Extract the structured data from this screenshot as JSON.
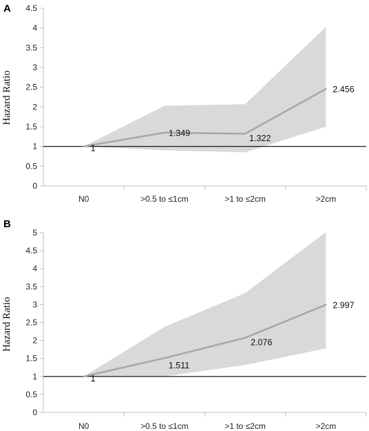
{
  "chart_data": [
    {
      "type": "line",
      "panel_label": "A",
      "ylabel": "Hazard Ratio",
      "categories": [
        "N0",
        ">0.5 to ≤1cm",
        ">1 to ≤2cm",
        ">2cm"
      ],
      "values": [
        1,
        1.349,
        1.322,
        2.456
      ],
      "data_labels": [
        "1",
        "1.349",
        "1.322",
        "2.456"
      ],
      "ci_lower": [
        1,
        0.9,
        0.85,
        1.5
      ],
      "ci_upper": [
        1,
        2.03,
        2.07,
        4.03
      ],
      "reference_line": 1,
      "ylim": [
        0,
        4.5
      ],
      "yticks": [
        "0",
        "0.5",
        "1",
        "1.5",
        "2",
        "2.5",
        "3",
        "3.5",
        "4",
        "4.5"
      ],
      "colors": {
        "line": "#a6a6a6",
        "band": "#d9d9d9",
        "reference": "#000000"
      }
    },
    {
      "type": "line",
      "panel_label": "B",
      "ylabel": "Hazard Ratio",
      "categories": [
        "N0",
        ">0.5 to ≤1cm",
        ">1 to ≤2cm",
        ">2cm"
      ],
      "values": [
        1,
        1.511,
        2.076,
        2.997
      ],
      "data_labels": [
        "1",
        "1.511",
        "2.076",
        "2.997"
      ],
      "ci_lower": [
        1,
        1.0,
        1.32,
        1.78
      ],
      "ci_upper": [
        1,
        2.38,
        3.32,
        5.02
      ],
      "reference_line": 1,
      "ylim": [
        0,
        5
      ],
      "yticks": [
        "0",
        "0.5",
        "1",
        "1.5",
        "2",
        "2.5",
        "3",
        "3.5",
        "4",
        "4.5",
        "5"
      ],
      "colors": {
        "line": "#a6a6a6",
        "band": "#d9d9d9",
        "reference": "#000000"
      }
    }
  ]
}
